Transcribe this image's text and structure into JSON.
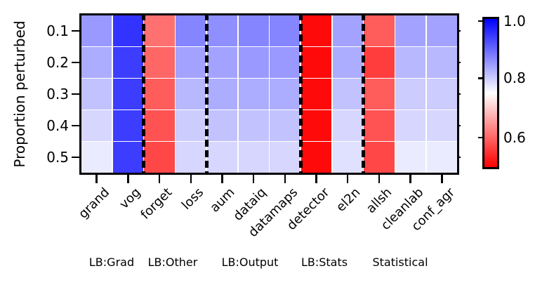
{
  "figure": {
    "ylabel": "Proportion perturbed"
  },
  "chart_data": {
    "type": "heatmap",
    "title": "",
    "xlabel": "",
    "ylabel": "Proportion perturbed",
    "x_categories": [
      "grand",
      "vog",
      "forget",
      "loss",
      "aum",
      "dataiq",
      "datamaps",
      "detector",
      "el2n",
      "allsh",
      "cleanlab",
      "conf_agr"
    ],
    "y_categories": [
      "0.1",
      "0.2",
      "0.3",
      "0.4",
      "0.5"
    ],
    "x_groups": [
      {
        "label": "LB:Grad",
        "columns": [
          "grand",
          "vog"
        ]
      },
      {
        "label": "LB:Other",
        "columns": [
          "forget",
          "loss"
        ]
      },
      {
        "label": "LB:Output",
        "columns": [
          "aum",
          "dataiq",
          "datamaps"
        ]
      },
      {
        "label": "LB:Stats",
        "columns": [
          "detector",
          "el2n"
        ]
      },
      {
        "label": "Statistical",
        "columns": [
          "allsh",
          "cleanlab",
          "conf_agr"
        ]
      }
    ],
    "separators_after_columns": [
      "vog",
      "loss",
      "datamaps",
      "el2n"
    ],
    "values": [
      [
        0.85,
        0.95,
        0.61,
        0.87,
        0.86,
        0.87,
        0.87,
        0.51,
        0.84,
        0.59,
        0.84,
        0.84
      ],
      [
        0.83,
        0.94,
        0.6,
        0.84,
        0.84,
        0.85,
        0.85,
        0.51,
        0.83,
        0.56,
        0.82,
        0.82
      ],
      [
        0.81,
        0.94,
        0.59,
        0.82,
        0.83,
        0.83,
        0.83,
        0.51,
        0.81,
        0.59,
        0.8,
        0.8
      ],
      [
        0.79,
        0.94,
        0.58,
        0.8,
        0.81,
        0.81,
        0.81,
        0.51,
        0.79,
        0.58,
        0.79,
        0.79
      ],
      [
        0.77,
        0.94,
        0.57,
        0.79,
        0.79,
        0.79,
        0.79,
        0.51,
        0.78,
        0.57,
        0.77,
        0.77
      ]
    ],
    "colormap": "bwr reversed (red=low, white=mid, blue=high)",
    "color_range": [
      0.5,
      1.0
    ],
    "colorbar_ticks": [
      "1.0",
      "0.8",
      "0.6"
    ],
    "colorbar_tick_values": [
      1.0,
      0.8,
      0.6
    ],
    "colors": {
      "high": "#0000ff",
      "mid": "#ffffff",
      "low": "#ff0000"
    },
    "legend_position": "right colorbar",
    "grid": "white cell gridlines"
  }
}
